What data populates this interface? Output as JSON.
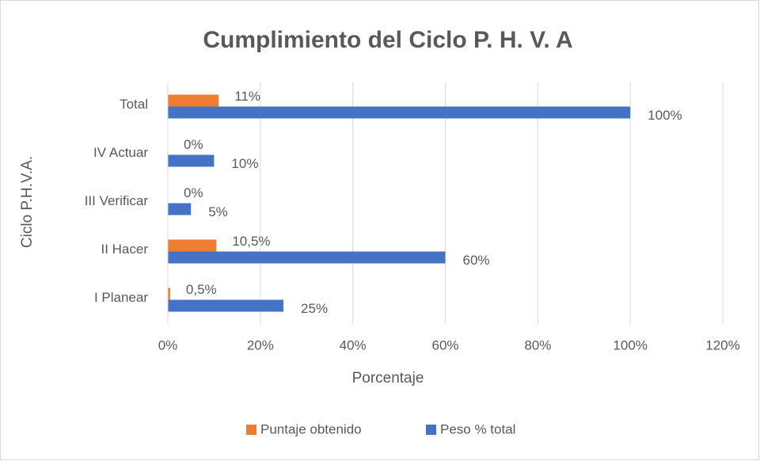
{
  "chart_data": {
    "type": "hbar",
    "title": "Cumplimiento del Ciclo P. H. V. A",
    "x_label": "Porcentaje",
    "y_label": "Ciclo P.H.V.A.",
    "categories": [
      "I Planear",
      "II Hacer",
      "III Verificar",
      "IV Actuar",
      "Total"
    ],
    "series": [
      {
        "name": "Puntaje obtenido",
        "color": "#ed7d31",
        "values": [
          0.5,
          10.5,
          0,
          0,
          11
        ],
        "value_labels": [
          "0,5%",
          "10,5%",
          "0%",
          "0%",
          "11%"
        ]
      },
      {
        "name": "Peso % total",
        "color": "#4472c4",
        "values": [
          25,
          60,
          5,
          10,
          100
        ],
        "value_labels": [
          "25%",
          "60%",
          "5%",
          "10%",
          "100%"
        ]
      }
    ],
    "xlim": [
      0,
      120
    ],
    "xticks": [
      {
        "value": 0,
        "label": "0%"
      },
      {
        "value": 20,
        "label": "20%"
      },
      {
        "value": 40,
        "label": "40%"
      },
      {
        "value": 60,
        "label": "60%"
      },
      {
        "value": 80,
        "label": "80%"
      },
      {
        "value": 100,
        "label": "100%"
      },
      {
        "value": 120,
        "label": "120%"
      }
    ],
    "grid": true,
    "legend": "bottom"
  }
}
